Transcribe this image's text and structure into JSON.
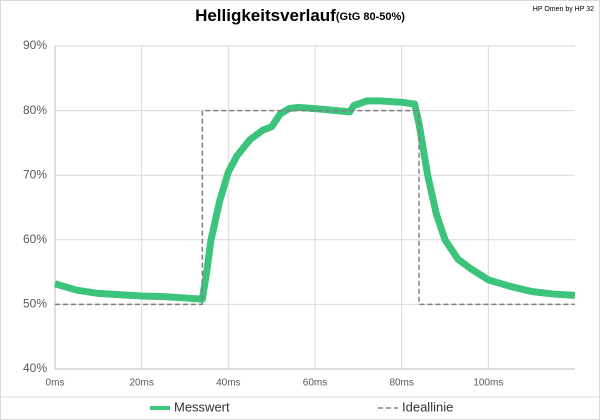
{
  "chart_data": {
    "type": "line",
    "title": "Helligkeitsverlauf",
    "subtitle": "(GtG 80-50%)",
    "annotation": "HP Omen by HP 32",
    "xlim": [
      0,
      120
    ],
    "ylim": [
      40,
      90
    ],
    "grid": true,
    "xticks": [
      {
        "value": 0,
        "label": "0ms"
      },
      {
        "value": 20,
        "label": "20ms"
      },
      {
        "value": 40,
        "label": "40ms"
      },
      {
        "value": 60,
        "label": "60ms"
      },
      {
        "value": 80,
        "label": "80ms"
      },
      {
        "value": 100,
        "label": "100ms"
      }
    ],
    "yticks": [
      {
        "value": 40,
        "label": "40%"
      },
      {
        "value": 50,
        "label": "50%"
      },
      {
        "value": 60,
        "label": "60%"
      },
      {
        "value": 70,
        "label": "70%"
      },
      {
        "value": 80,
        "label": "80%"
      },
      {
        "value": 90,
        "label": "90%"
      }
    ],
    "series": [
      {
        "name": "Messwert",
        "color": "#3cc47c",
        "dash": false,
        "x": [
          0,
          2,
          5,
          10,
          15,
          20,
          25,
          30,
          34,
          35,
          36,
          38,
          40,
          42,
          45,
          48,
          50,
          52,
          54,
          56,
          60,
          65,
          68,
          69,
          72,
          75,
          80,
          83,
          84,
          85,
          86,
          88,
          90,
          93,
          96,
          100,
          105,
          110,
          115,
          120
        ],
        "values": [
          53.2,
          52.8,
          52.2,
          51.7,
          51.5,
          51.3,
          51.2,
          51,
          50.8,
          55,
          60,
          66,
          70.5,
          73,
          75.5,
          77,
          77.5,
          79.5,
          80.3,
          80.5,
          80.3,
          80,
          79.8,
          80.8,
          81.5,
          81.5,
          81.3,
          81,
          78,
          74,
          70,
          64,
          60,
          57,
          55.5,
          53.8,
          52.8,
          52,
          51.6,
          51.4
        ]
      },
      {
        "name": "Ideallinie",
        "color": "#808080",
        "dash": true,
        "x": [
          0,
          34,
          34,
          84,
          84,
          120
        ],
        "values": [
          50,
          50,
          80,
          80,
          50,
          50
        ]
      }
    ]
  }
}
